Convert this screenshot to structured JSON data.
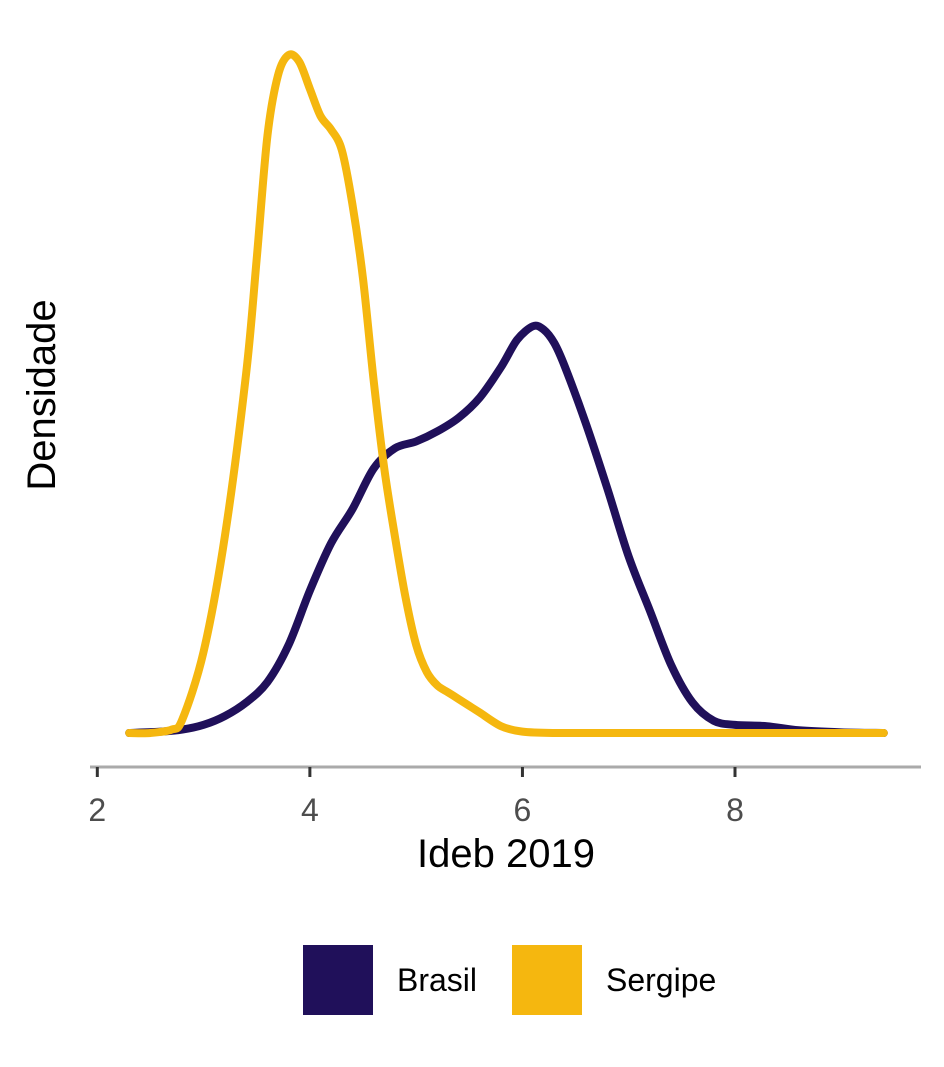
{
  "chart_data": {
    "type": "line",
    "title": "",
    "xlabel": "Ideb 2019",
    "ylabel": "Densidade",
    "xlim": [
      1.95,
      9.75
    ],
    "ylim": [
      0,
      1.0
    ],
    "x_ticks": [
      2,
      4,
      6,
      8
    ],
    "x_tick_labels": [
      "2",
      "4",
      "6",
      "8"
    ],
    "y_ticks_shown": false,
    "grid": false,
    "legend_position": "bottom",
    "series": [
      {
        "name": "Brasil",
        "color": "#20105A",
        "x": [
          2.3,
          2.6,
          2.8,
          3.0,
          3.2,
          3.4,
          3.6,
          3.8,
          4.0,
          4.2,
          4.4,
          4.6,
          4.8,
          5.0,
          5.2,
          5.4,
          5.6,
          5.8,
          5.95,
          6.1,
          6.2,
          6.3,
          6.4,
          6.6,
          6.8,
          7.0,
          7.2,
          7.4,
          7.6,
          7.8,
          8.0,
          8.3,
          8.6,
          9.0,
          9.4
        ],
        "y": [
          0.0,
          0.002,
          0.005,
          0.012,
          0.025,
          0.045,
          0.075,
          0.13,
          0.21,
          0.28,
          0.33,
          0.39,
          0.42,
          0.43,
          0.445,
          0.465,
          0.495,
          0.54,
          0.58,
          0.6,
          0.595,
          0.575,
          0.54,
          0.455,
          0.36,
          0.26,
          0.18,
          0.1,
          0.045,
          0.018,
          0.012,
          0.01,
          0.004,
          0.001,
          0.0
        ]
      },
      {
        "name": "Sergipe",
        "color": "#F5B70F",
        "x": [
          2.3,
          2.5,
          2.7,
          2.8,
          3.0,
          3.2,
          3.4,
          3.5,
          3.6,
          3.7,
          3.8,
          3.9,
          4.0,
          4.1,
          4.2,
          4.3,
          4.4,
          4.5,
          4.6,
          4.7,
          4.8,
          4.9,
          5.0,
          5.1,
          5.2,
          5.3,
          5.4,
          5.5,
          5.6,
          5.8,
          6.0,
          6.3,
          7.0,
          8.0,
          9.4
        ],
        "y": [
          0.0,
          0.0,
          0.005,
          0.02,
          0.12,
          0.29,
          0.53,
          0.7,
          0.88,
          0.97,
          1.0,
          0.99,
          0.95,
          0.91,
          0.89,
          0.86,
          0.78,
          0.67,
          0.52,
          0.39,
          0.29,
          0.2,
          0.13,
          0.09,
          0.07,
          0.06,
          0.05,
          0.04,
          0.03,
          0.01,
          0.002,
          0.0,
          0.0,
          0.0,
          0.0
        ]
      }
    ]
  }
}
